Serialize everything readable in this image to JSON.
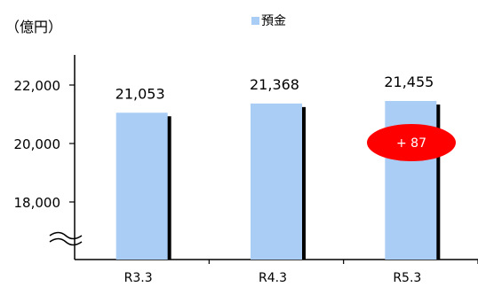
{
  "colors": {
    "bar": "#a9cdf5",
    "shadow": "#000000",
    "badge": "#ff0000",
    "axis": "#000000",
    "text": "#000000",
    "badge_text": "#ffffff"
  },
  "chart_data": {
    "type": "bar",
    "unit_label": "（億円）",
    "categories": [
      "R3.3",
      "R4.3",
      "R5.3"
    ],
    "series": [
      {
        "name": "預金",
        "values": [
          21053,
          21368,
          21455
        ]
      }
    ],
    "data_labels": [
      "21,053",
      "21,368",
      "21,455"
    ],
    "yticks": [
      {
        "value": 18000,
        "label": "18,000"
      },
      {
        "value": 20000,
        "label": "20,000"
      },
      {
        "value": 22000,
        "label": "22,000"
      }
    ],
    "ylim": [
      16000,
      22800
    ],
    "axis_break": true,
    "legend": {
      "label": "預金",
      "position": "top-center"
    },
    "annotation": {
      "text": "+ 87",
      "category": "R5.3"
    },
    "grid": false
  }
}
